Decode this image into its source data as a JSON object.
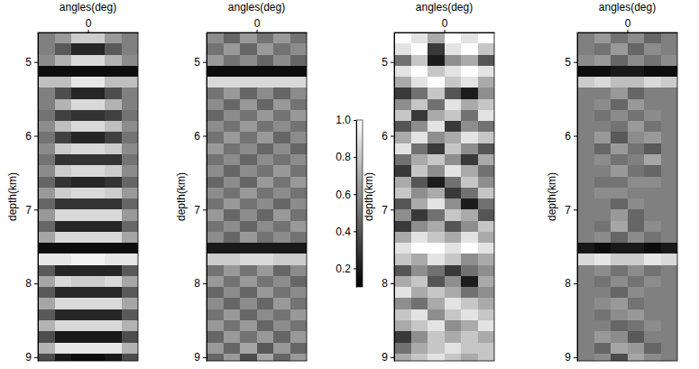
{
  "chart_data": [
    {
      "type": "heatmap",
      "x_label": "angles(deg)",
      "y_label": "depth(km)",
      "xlim": [
        -60,
        60
      ],
      "xticks": [
        0
      ],
      "ylim": [
        4.6,
        9.05
      ],
      "yticks": [
        5,
        6,
        7,
        8,
        9
      ],
      "zlim": [
        -1,
        1
      ],
      "x": [
        -50,
        -30,
        -10,
        10,
        30,
        50
      ],
      "y": [
        4.675,
        4.825,
        4.975,
        5.125,
        5.275,
        5.425,
        5.575,
        5.725,
        5.875,
        6.025,
        6.175,
        6.325,
        6.475,
        6.625,
        6.775,
        6.925,
        7.075,
        7.225,
        7.375,
        7.525,
        7.675,
        7.825,
        7.975,
        8.125,
        8.275,
        8.425,
        8.575,
        8.725,
        8.875,
        9.025
      ],
      "z": [
        [
          0.0,
          0.2,
          0.6,
          0.6,
          0.2,
          0.0
        ],
        [
          0.0,
          -0.3,
          -0.7,
          -0.7,
          -0.3,
          0.0
        ],
        [
          0.1,
          0.4,
          0.7,
          0.7,
          0.4,
          0.1
        ],
        [
          -0.9,
          -0.9,
          -0.9,
          -0.9,
          -0.9,
          -0.9
        ],
        [
          0.5,
          0.5,
          0.8,
          0.8,
          0.5,
          0.5
        ],
        [
          0.0,
          -0.4,
          -0.7,
          -0.7,
          -0.4,
          0.0
        ],
        [
          0.0,
          0.4,
          0.7,
          0.7,
          0.4,
          0.0
        ],
        [
          -0.1,
          -0.5,
          -0.6,
          -0.6,
          -0.5,
          -0.1
        ],
        [
          0.1,
          0.5,
          0.7,
          0.7,
          0.5,
          0.1
        ],
        [
          -0.1,
          -0.5,
          -0.7,
          -0.7,
          -0.5,
          -0.1
        ],
        [
          0.1,
          0.6,
          0.7,
          0.7,
          0.6,
          0.1
        ],
        [
          -0.1,
          -0.6,
          -0.6,
          -0.6,
          -0.6,
          -0.1
        ],
        [
          0.1,
          0.6,
          0.7,
          0.7,
          0.6,
          0.1
        ],
        [
          -0.2,
          -0.6,
          -0.7,
          -0.7,
          -0.6,
          -0.2
        ],
        [
          0.2,
          0.6,
          0.7,
          0.7,
          0.6,
          0.2
        ],
        [
          -0.2,
          -0.6,
          -0.6,
          -0.6,
          -0.6,
          -0.2
        ],
        [
          0.2,
          0.7,
          0.7,
          0.7,
          0.7,
          0.2
        ],
        [
          -0.2,
          -0.7,
          -0.7,
          -0.7,
          -0.7,
          -0.2
        ],
        [
          0.3,
          0.7,
          0.7,
          0.7,
          0.7,
          0.3
        ],
        [
          -0.9,
          -0.9,
          -0.9,
          -0.9,
          -0.9,
          -0.9
        ],
        [
          0.8,
          0.8,
          0.9,
          0.9,
          0.8,
          0.8
        ],
        [
          -0.3,
          -0.7,
          -0.7,
          -0.7,
          -0.7,
          -0.3
        ],
        [
          0.3,
          0.7,
          0.6,
          0.6,
          0.7,
          0.3
        ],
        [
          -0.3,
          -0.7,
          -0.7,
          -0.7,
          -0.7,
          -0.3
        ],
        [
          0.3,
          0.7,
          0.7,
          0.7,
          0.7,
          0.3
        ],
        [
          -0.3,
          -0.7,
          -0.7,
          -0.7,
          -0.7,
          -0.3
        ],
        [
          0.4,
          0.7,
          0.7,
          0.7,
          0.7,
          0.4
        ],
        [
          -0.4,
          -0.8,
          -0.8,
          -0.8,
          -0.8,
          -0.4
        ],
        [
          0.4,
          0.8,
          0.8,
          0.8,
          0.8,
          0.4
        ],
        [
          -0.4,
          -0.8,
          -0.9,
          -0.9,
          -0.8,
          -0.4
        ]
      ]
    },
    {
      "type": "heatmap",
      "x_label": "angles(deg)",
      "y_label": "depth(km)",
      "xlim": [
        -60,
        60
      ],
      "xticks": [
        0
      ],
      "ylim": [
        4.6,
        9.05
      ],
      "yticks": [
        5,
        6,
        7,
        8,
        9
      ],
      "zlim": [
        -1,
        1
      ],
      "x": [
        -50,
        -30,
        -10,
        10,
        30,
        50
      ],
      "y": [
        4.675,
        4.825,
        4.975,
        5.125,
        5.275,
        5.425,
        5.575,
        5.725,
        5.875,
        6.025,
        6.175,
        6.325,
        6.475,
        6.625,
        6.775,
        6.925,
        7.075,
        7.225,
        7.375,
        7.525,
        7.675,
        7.825,
        7.975,
        8.125,
        8.275,
        8.425,
        8.575,
        8.725,
        8.875,
        9.025
      ],
      "z": [
        [
          0.1,
          -0.2,
          0.2,
          -0.1,
          0.2,
          -0.1
        ],
        [
          -0.1,
          0.2,
          -0.2,
          0.2,
          -0.1,
          0.1
        ],
        [
          0.2,
          -0.1,
          0.1,
          -0.2,
          0.1,
          -0.2
        ],
        [
          -0.9,
          -0.9,
          -0.9,
          -0.9,
          -0.9,
          -0.9
        ],
        [
          0.7,
          0.7,
          0.7,
          0.7,
          0.7,
          0.7
        ],
        [
          -0.1,
          0.2,
          -0.2,
          0.1,
          -0.2,
          0.1
        ],
        [
          0.1,
          -0.2,
          0.2,
          -0.2,
          0.2,
          -0.1
        ],
        [
          -0.2,
          0.1,
          -0.1,
          0.2,
          -0.1,
          0.2
        ],
        [
          0.1,
          -0.1,
          0.2,
          -0.1,
          0.1,
          -0.1
        ],
        [
          -0.1,
          0.2,
          -0.1,
          0.2,
          -0.2,
          0.1
        ],
        [
          0.2,
          -0.1,
          0.1,
          -0.2,
          0.1,
          -0.2
        ],
        [
          -0.1,
          0.1,
          -0.2,
          0.1,
          -0.1,
          0.1
        ],
        [
          0.1,
          -0.2,
          0.1,
          -0.1,
          0.2,
          -0.1
        ],
        [
          -0.2,
          0.1,
          -0.2,
          0.2,
          -0.1,
          0.2
        ],
        [
          0.1,
          -0.1,
          0.2,
          -0.1,
          0.1,
          -0.1
        ],
        [
          -0.1,
          0.2,
          -0.1,
          0.1,
          -0.2,
          0.1
        ],
        [
          0.2,
          -0.2,
          0.1,
          -0.2,
          0.2,
          -0.1
        ],
        [
          -0.1,
          0.1,
          -0.2,
          0.1,
          -0.1,
          0.2
        ],
        [
          0.1,
          -0.2,
          0.2,
          -0.1,
          0.1,
          -0.1
        ],
        [
          -0.8,
          -0.8,
          -0.8,
          -0.8,
          -0.8,
          -0.8
        ],
        [
          0.6,
          0.6,
          0.7,
          0.7,
          0.6,
          0.6
        ],
        [
          -0.1,
          0.2,
          -0.1,
          0.2,
          -0.2,
          0.1
        ],
        [
          0.2,
          -0.1,
          0.2,
          -0.1,
          0.1,
          -0.2
        ],
        [
          -0.2,
          0.1,
          -0.2,
          0.2,
          -0.1,
          0.1
        ],
        [
          0.1,
          -0.2,
          0.1,
          -0.2,
          0.2,
          -0.1
        ],
        [
          -0.1,
          0.2,
          -0.2,
          0.1,
          -0.1,
          0.2
        ],
        [
          0.2,
          -0.1,
          0.2,
          -0.2,
          0.1,
          -0.1
        ],
        [
          -0.2,
          0.2,
          -0.1,
          0.2,
          -0.2,
          0.2
        ],
        [
          0.2,
          -0.2,
          0.3,
          -0.3,
          0.2,
          -0.2
        ],
        [
          -0.2,
          0.2,
          -0.4,
          0.3,
          -0.2,
          0.2
        ]
      ]
    },
    {
      "type": "heatmap",
      "x_label": "angles(deg)",
      "y_label": "depth(km)",
      "xlim": [
        -60,
        60
      ],
      "xticks": [
        0
      ],
      "ylim": [
        4.6,
        9.05
      ],
      "yticks": [
        5,
        6,
        7,
        8,
        9
      ],
      "colorbar": {
        "range": [
          0.1,
          1.0
        ],
        "ticks": [
          {
            "value": 1,
            "label": "1.0"
          },
          0.8,
          0.6,
          0.4,
          0.2
        ]
      },
      "x": [
        -50,
        -30,
        -10,
        10,
        30,
        50
      ],
      "y": [
        4.675,
        4.825,
        4.975,
        5.125,
        5.275,
        5.425,
        5.575,
        5.725,
        5.875,
        6.025,
        6.175,
        6.325,
        6.475,
        6.625,
        6.775,
        6.925,
        7.075,
        7.225,
        7.375,
        7.525,
        7.675,
        7.825,
        7.975,
        8.125,
        8.275,
        8.425,
        8.575,
        8.725,
        8.875,
        9.025
      ],
      "z": [
        [
          1.0,
          0.9,
          0.7,
          1.0,
          0.9,
          1.0
        ],
        [
          0.9,
          1.0,
          0.3,
          0.9,
          1.0,
          0.8
        ],
        [
          0.5,
          0.8,
          0.2,
          0.6,
          0.7,
          0.4
        ],
        [
          0.9,
          1.0,
          0.8,
          0.9,
          1.0,
          0.9
        ],
        [
          0.7,
          0.9,
          1.0,
          0.8,
          0.9,
          0.7
        ],
        [
          0.3,
          0.5,
          0.8,
          0.4,
          0.2,
          0.6
        ],
        [
          0.6,
          0.8,
          0.5,
          0.9,
          0.7,
          0.8
        ],
        [
          0.8,
          0.3,
          0.7,
          0.8,
          0.5,
          0.9
        ],
        [
          0.4,
          0.6,
          0.9,
          0.3,
          0.6,
          0.5
        ],
        [
          0.7,
          0.9,
          0.6,
          0.7,
          0.9,
          0.8
        ],
        [
          0.9,
          0.5,
          0.3,
          0.8,
          0.6,
          0.4
        ],
        [
          0.5,
          0.7,
          0.8,
          0.6,
          0.3,
          0.7
        ],
        [
          0.3,
          0.8,
          0.6,
          0.9,
          0.7,
          0.5
        ],
        [
          0.7,
          0.4,
          0.2,
          0.5,
          0.8,
          0.6
        ],
        [
          0.8,
          0.6,
          0.7,
          0.3,
          0.5,
          0.8
        ],
        [
          0.4,
          0.7,
          0.9,
          0.6,
          0.2,
          0.5
        ],
        [
          0.6,
          0.3,
          0.5,
          0.8,
          0.7,
          0.4
        ],
        [
          0.3,
          0.6,
          0.7,
          0.4,
          0.6,
          0.8
        ],
        [
          0.7,
          0.9,
          0.8,
          0.7,
          0.9,
          0.7
        ],
        [
          0.9,
          1.0,
          1.0,
          0.9,
          1.0,
          0.9
        ],
        [
          0.8,
          0.7,
          0.9,
          0.8,
          0.6,
          0.7
        ],
        [
          0.4,
          0.6,
          0.5,
          0.3,
          0.5,
          0.6
        ],
        [
          0.7,
          0.8,
          0.4,
          0.6,
          0.2,
          0.7
        ],
        [
          0.9,
          0.7,
          0.8,
          0.7,
          0.5,
          0.6
        ],
        [
          0.6,
          0.5,
          0.7,
          0.9,
          0.8,
          0.7
        ],
        [
          0.8,
          0.9,
          0.6,
          0.8,
          0.9,
          0.8
        ],
        [
          0.7,
          0.8,
          0.9,
          0.6,
          0.7,
          0.9
        ],
        [
          0.3,
          0.6,
          0.8,
          0.7,
          0.8,
          0.7
        ],
        [
          0.5,
          0.7,
          0.8,
          0.9,
          0.8,
          0.8
        ],
        [
          0.7,
          0.8,
          0.9,
          0.8,
          0.7,
          0.8
        ]
      ]
    },
    {
      "type": "heatmap",
      "x_label": "angles(deg)",
      "y_label": "depth(km)",
      "xlim": [
        -60,
        60
      ],
      "xticks": [
        0
      ],
      "ylim": [
        4.6,
        9.05
      ],
      "yticks": [
        5,
        6,
        7,
        8,
        9
      ],
      "zlim": [
        -1,
        1
      ],
      "x": [
        -50,
        -30,
        -10,
        10,
        30,
        50
      ],
      "y": [
        4.675,
        4.825,
        4.975,
        5.125,
        5.275,
        5.425,
        5.575,
        5.725,
        5.875,
        6.025,
        6.175,
        6.325,
        6.475,
        6.625,
        6.775,
        6.925,
        7.075,
        7.225,
        7.375,
        7.525,
        7.675,
        7.825,
        7.975,
        8.125,
        8.275,
        8.425,
        8.575,
        8.725,
        8.875,
        9.025
      ],
      "z": [
        [
          0.0,
          0.2,
          -0.1,
          0.1,
          -0.2,
          0.0
        ],
        [
          0.0,
          -0.1,
          0.2,
          -0.2,
          0.1,
          0.0
        ],
        [
          0.1,
          0.2,
          -0.2,
          0.1,
          -0.1,
          0.1
        ],
        [
          -0.9,
          -0.9,
          -0.8,
          -0.8,
          -0.9,
          -0.9
        ],
        [
          0.6,
          0.7,
          0.5,
          0.5,
          0.7,
          0.6
        ],
        [
          0.0,
          0.0,
          0.2,
          -0.2,
          0.0,
          0.0
        ],
        [
          0.0,
          0.1,
          -0.2,
          0.2,
          0.0,
          0.0
        ],
        [
          0.0,
          -0.1,
          0.1,
          -0.1,
          0.1,
          0.0
        ],
        [
          0.0,
          0.0,
          -0.1,
          0.2,
          -0.1,
          0.0
        ],
        [
          0.0,
          0.2,
          -0.3,
          0.1,
          0.2,
          0.0
        ],
        [
          0.0,
          -0.2,
          0.2,
          -0.1,
          -0.3,
          0.0
        ],
        [
          0.0,
          0.1,
          -0.1,
          0.0,
          0.3,
          0.0
        ],
        [
          0.0,
          0.0,
          0.2,
          -0.1,
          -0.2,
          0.0
        ],
        [
          0.0,
          -0.1,
          -0.1,
          0.1,
          0.1,
          0.0
        ],
        [
          0.0,
          0.1,
          0.1,
          0.0,
          0.0,
          0.0
        ],
        [
          0.0,
          0.0,
          -0.2,
          0.1,
          0.0,
          0.0
        ],
        [
          0.0,
          0.0,
          0.2,
          -0.2,
          0.0,
          0.0
        ],
        [
          0.0,
          -0.1,
          0.3,
          -0.2,
          0.1,
          0.0
        ],
        [
          0.0,
          0.1,
          -0.2,
          0.1,
          -0.1,
          0.0
        ],
        [
          -0.8,
          -0.9,
          -0.8,
          -0.8,
          -0.9,
          -0.8
        ],
        [
          0.7,
          0.8,
          0.6,
          0.6,
          0.8,
          0.7
        ],
        [
          0.0,
          0.1,
          -0.1,
          0.1,
          -0.1,
          0.0
        ],
        [
          0.0,
          -0.1,
          0.1,
          -0.1,
          0.1,
          0.0
        ],
        [
          0.0,
          0.0,
          -0.2,
          0.1,
          0.0,
          0.0
        ],
        [
          0.0,
          0.1,
          0.2,
          -0.1,
          0.0,
          0.0
        ],
        [
          0.0,
          -0.1,
          0.1,
          0.2,
          0.0,
          0.0
        ],
        [
          0.0,
          0.0,
          -0.2,
          -0.1,
          0.1,
          0.0
        ],
        [
          0.0,
          0.2,
          0.1,
          -0.3,
          0.0,
          0.0
        ],
        [
          0.0,
          -0.2,
          0.3,
          0.2,
          -0.2,
          0.0
        ],
        [
          0.0,
          0.1,
          -0.4,
          0.3,
          0.1,
          0.0
        ]
      ]
    }
  ]
}
